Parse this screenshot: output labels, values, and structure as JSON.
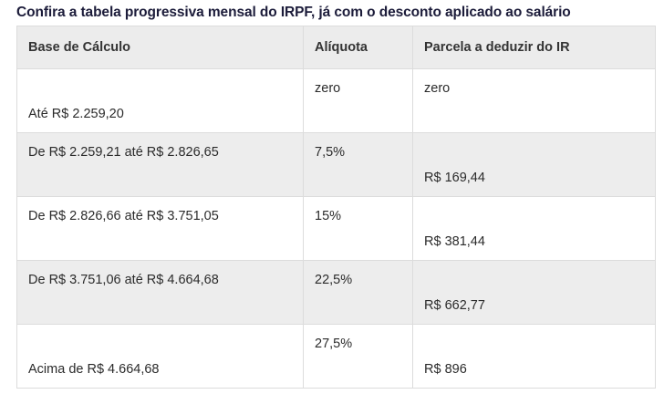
{
  "caption": "Confira a tabela progressiva mensal do IRPF, já com o desconto aplicado ao salário",
  "table": {
    "headers": [
      "Base de Cálculo",
      "Alíquota",
      "Parcela a deduzir do IR"
    ],
    "rows": [
      {
        "base": "Até R$ 2.259,20",
        "aliquota": "zero",
        "parcela": "zero"
      },
      {
        "base": "De R$ 2.259,21 até R$ 2.826,65",
        "aliquota": "7,5%",
        "parcela": "R$ 169,44"
      },
      {
        "base": "De R$ 2.826,66 até R$ 3.751,05",
        "aliquota": "15%",
        "parcela": "R$ 381,44"
      },
      {
        "base": "De R$ 3.751,06 até R$ 4.664,68",
        "aliquota": "22,5%",
        "parcela": "R$ 662,77"
      },
      {
        "base": "Acima de R$ 4.664,68",
        "aliquota": "27,5%",
        "parcela": "R$ 896"
      }
    ]
  }
}
